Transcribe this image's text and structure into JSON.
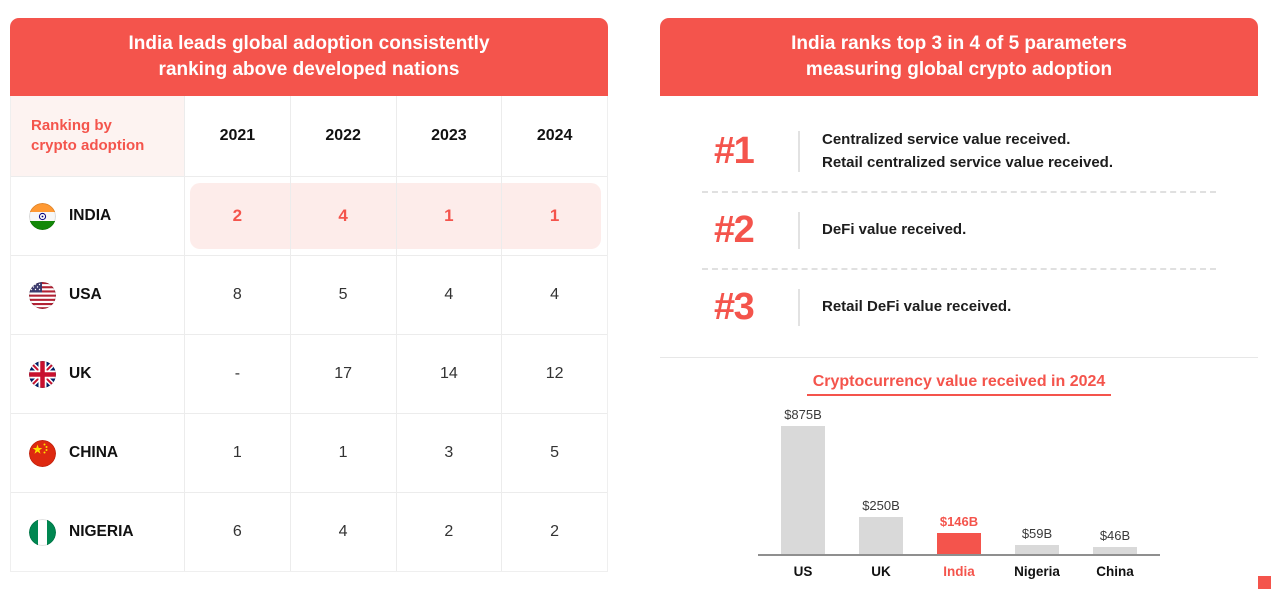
{
  "colors": {
    "accent": "#f4544c",
    "header_bg": "#f4544c",
    "india_row_highlight_bg": "#fdecea",
    "corner_cell_bg": "#fdf3f1",
    "bar_gray": "#d9d9d9"
  },
  "left_panel": {
    "title_lines": [
      "India leads global adoption consistently",
      "ranking above developed nations"
    ],
    "table": {
      "corner_label_lines": [
        "Ranking by",
        "crypto adoption"
      ],
      "years": [
        "2021",
        "2022",
        "2023",
        "2024"
      ],
      "rows": [
        {
          "country": "INDIA",
          "flag": "india-flag",
          "values": [
            "2",
            "4",
            "1",
            "1"
          ],
          "highlighted": true
        },
        {
          "country": "USA",
          "flag": "usa-flag",
          "values": [
            "8",
            "5",
            "4",
            "4"
          ],
          "highlighted": false
        },
        {
          "country": "UK",
          "flag": "uk-flag",
          "values": [
            "-",
            "17",
            "14",
            "12"
          ],
          "highlighted": false
        },
        {
          "country": "CHINA",
          "flag": "china-flag",
          "values": [
            "1",
            "1",
            "3",
            "5"
          ],
          "highlighted": false
        },
        {
          "country": "NIGERIA",
          "flag": "nigeria-flag",
          "values": [
            "6",
            "4",
            "2",
            "2"
          ],
          "highlighted": false
        }
      ]
    }
  },
  "right_panel": {
    "title_lines": [
      "India ranks top 3 in 4 of 5 parameters",
      "measuring global crypto adoption"
    ],
    "parameters": [
      {
        "rank": "#1",
        "lines": [
          "Centralized service value received.",
          "Retail centralized service value received."
        ]
      },
      {
        "rank": "#2",
        "lines": [
          "DeFi value received."
        ]
      },
      {
        "rank": "#3",
        "lines": [
          "Retail DeFi value received."
        ]
      }
    ]
  },
  "chart_data": {
    "type": "bar",
    "title": "Cryptocurrency value received in 2024",
    "categories": [
      "US",
      "UK",
      "India",
      "Nigeria",
      "China"
    ],
    "values": [
      875,
      250,
      146,
      59,
      46
    ],
    "value_labels": [
      "$875B",
      "$250B",
      "$146B",
      "$59B",
      "$46B"
    ],
    "highlight_index": 2,
    "ylim": [
      0,
      875
    ],
    "grid": false,
    "legend": false
  }
}
